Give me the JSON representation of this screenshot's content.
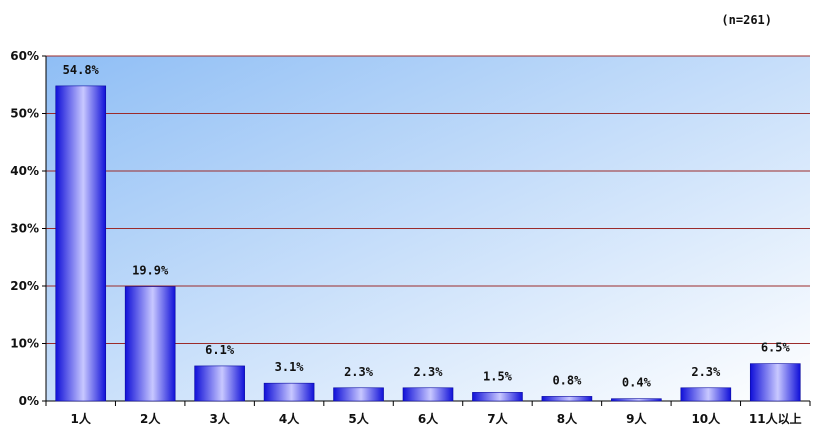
{
  "chart_data": {
    "type": "bar",
    "annotation": "(n=261)",
    "categories": [
      "1人",
      "2人",
      "3人",
      "4人",
      "5人",
      "6人",
      "7人",
      "8人",
      "9人",
      "10人",
      "11人以上"
    ],
    "values": [
      54.8,
      19.9,
      6.1,
      3.1,
      2.3,
      2.3,
      1.5,
      0.8,
      0.4,
      2.3,
      6.5
    ],
    "data_labels": [
      "54.8%",
      "19.9%",
      "6.1%",
      "3.1%",
      "2.3%",
      "2.3%",
      "1.5%",
      "0.8%",
      "0.4%",
      "2.3%",
      "6.5%"
    ],
    "y_ticks": [
      0,
      10,
      20,
      30,
      40,
      50,
      60
    ],
    "y_tick_labels": [
      "0%",
      "10%",
      "20%",
      "30%",
      "40%",
      "50%",
      "60%"
    ],
    "ylim": [
      0,
      60
    ],
    "grid": true,
    "colors": {
      "bar_dark": "#1010d8",
      "bar_light": "#c8c8ff",
      "grid": "#9b2b2b",
      "plot_bg_top_left": "#8fbef5",
      "plot_bg_bottom_right": "#ffffff"
    }
  }
}
